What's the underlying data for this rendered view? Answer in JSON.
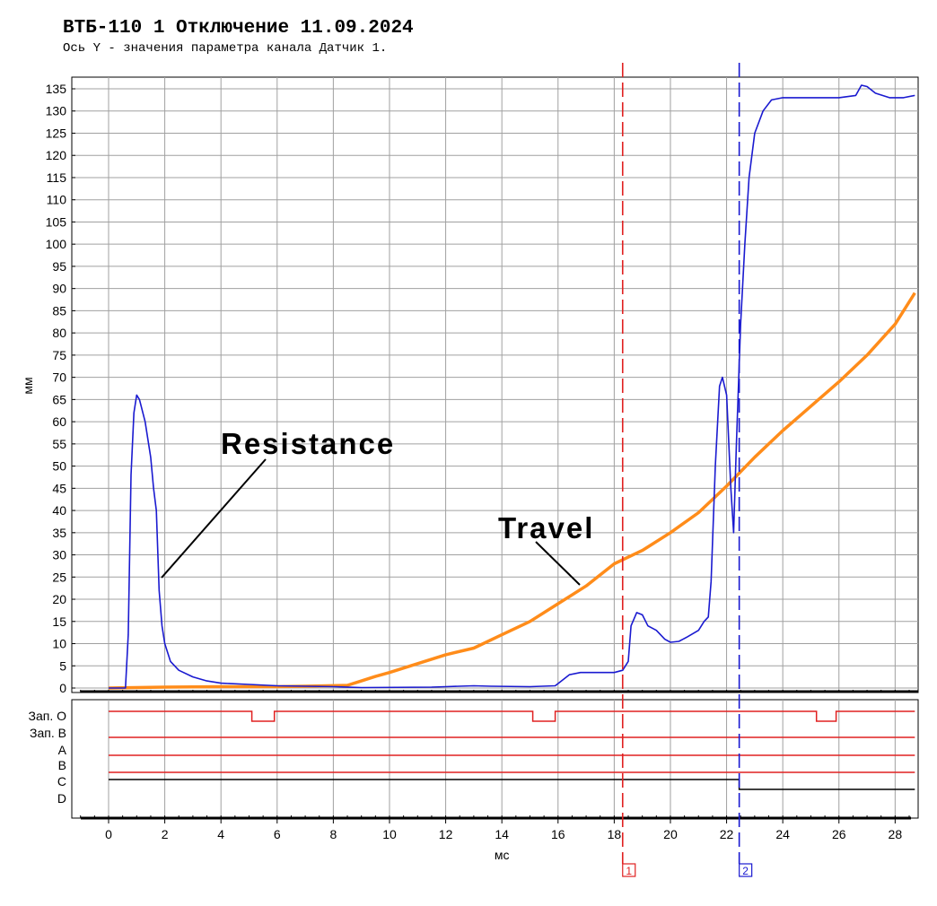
{
  "title": "ВТБ-110 1 Отключение 11.09.2024",
  "subtitle": "Ось Y - значения параметра канала Датчик 1.",
  "colors": {
    "resistance": "#1a1ad0",
    "travel": "#ff8c1a",
    "digital_red": "#e02020",
    "digital_black": "#000000",
    "marker1": "#e02020",
    "marker2": "#1a1ad0",
    "grid": "#a0a0a0"
  },
  "chart_data": {
    "type": "line",
    "xlabel": "мс",
    "ylabel": "мм",
    "xlim": [
      -1.1,
      28.7
    ],
    "ylim": [
      -0.5,
      137
    ],
    "x_ticks": [
      0,
      2,
      4,
      6,
      8,
      10,
      12,
      14,
      16,
      18,
      20,
      22,
      24,
      26,
      28
    ],
    "y_ticks": [
      0,
      5,
      10,
      15,
      20,
      25,
      30,
      35,
      40,
      45,
      50,
      55,
      60,
      65,
      70,
      75,
      80,
      85,
      90,
      95,
      100,
      105,
      110,
      115,
      120,
      125,
      130,
      135
    ],
    "grid": true,
    "series": [
      {
        "name": "Resistance",
        "points": [
          [
            0,
            0
          ],
          [
            0.6,
            0
          ],
          [
            0.7,
            12
          ],
          [
            0.8,
            48
          ],
          [
            0.9,
            62
          ],
          [
            1.0,
            66
          ],
          [
            1.1,
            65
          ],
          [
            1.3,
            60
          ],
          [
            1.5,
            52
          ],
          [
            1.6,
            45
          ],
          [
            1.7,
            40
          ],
          [
            1.8,
            22
          ],
          [
            1.9,
            14
          ],
          [
            2.0,
            10
          ],
          [
            2.2,
            6
          ],
          [
            2.5,
            4
          ],
          [
            3.0,
            2.5
          ],
          [
            3.5,
            1.6
          ],
          [
            4.0,
            1.1
          ],
          [
            5.0,
            0.8
          ],
          [
            6.0,
            0.5
          ],
          [
            7.0,
            0.4
          ],
          [
            8.0,
            0.3
          ],
          [
            9.0,
            0.1
          ],
          [
            11.5,
            0.2
          ],
          [
            12.0,
            0.3
          ],
          [
            13.0,
            0.5
          ],
          [
            13.6,
            0.4
          ],
          [
            15.0,
            0.3
          ],
          [
            15.9,
            0.5
          ],
          [
            16.1,
            1.5
          ],
          [
            16.4,
            3
          ],
          [
            16.8,
            3.5
          ],
          [
            17.5,
            3.5
          ],
          [
            18.0,
            3.5
          ],
          [
            18.3,
            4
          ],
          [
            18.5,
            6
          ],
          [
            18.6,
            14
          ],
          [
            18.8,
            17
          ],
          [
            19.0,
            16.5
          ],
          [
            19.2,
            14
          ],
          [
            19.5,
            13
          ],
          [
            19.8,
            11
          ],
          [
            20.0,
            10.3
          ],
          [
            20.3,
            10.5
          ],
          [
            20.6,
            11.5
          ],
          [
            21.0,
            13
          ],
          [
            21.2,
            15
          ],
          [
            21.35,
            16
          ],
          [
            21.45,
            24
          ],
          [
            21.6,
            50
          ],
          [
            21.75,
            68
          ],
          [
            21.85,
            70
          ],
          [
            22.0,
            66
          ],
          [
            22.15,
            45
          ],
          [
            22.25,
            35
          ],
          [
            22.35,
            55
          ],
          [
            22.5,
            82
          ],
          [
            22.65,
            100
          ],
          [
            22.8,
            115
          ],
          [
            23.0,
            125
          ],
          [
            23.3,
            130
          ],
          [
            23.6,
            132.5
          ],
          [
            24.0,
            133
          ],
          [
            25.0,
            133
          ],
          [
            26.0,
            133
          ],
          [
            26.6,
            133.5
          ],
          [
            26.8,
            135.8
          ],
          [
            27.0,
            135.5
          ],
          [
            27.3,
            134
          ],
          [
            27.8,
            133
          ],
          [
            28.3,
            133
          ],
          [
            28.7,
            133.5
          ]
        ]
      },
      {
        "name": "Travel",
        "points": [
          [
            0,
            0
          ],
          [
            2,
            0.2
          ],
          [
            4,
            0.3
          ],
          [
            6,
            0.3
          ],
          [
            7,
            0.4
          ],
          [
            8.5,
            0.6
          ],
          [
            9,
            1.6
          ],
          [
            9.5,
            2.6
          ],
          [
            10,
            3.5
          ],
          [
            11,
            5.5
          ],
          [
            12,
            7.5
          ],
          [
            13,
            9
          ],
          [
            14,
            12
          ],
          [
            15,
            15
          ],
          [
            16,
            19
          ],
          [
            17,
            23
          ],
          [
            18,
            28
          ],
          [
            19,
            31
          ],
          [
            20,
            35
          ],
          [
            21,
            39.5
          ],
          [
            22,
            45.5
          ],
          [
            23,
            52
          ],
          [
            24,
            58
          ],
          [
            25,
            63.5
          ],
          [
            26,
            69
          ],
          [
            27,
            75
          ],
          [
            28,
            82
          ],
          [
            28.7,
            89
          ]
        ]
      }
    ],
    "annotations": [
      {
        "text": "Resistance",
        "target": "Resistance"
      },
      {
        "text": "Travel",
        "target": "Travel"
      }
    ],
    "markers": [
      {
        "label": "1",
        "x": 18.3,
        "color": "red"
      },
      {
        "label": "2",
        "x": 22.45,
        "color": "blue"
      }
    ],
    "digital_channels": [
      {
        "name": "Зап. О",
        "color": "red",
        "segments": [
          [
            0,
            5.1,
            1
          ],
          [
            5.1,
            5.9,
            0
          ],
          [
            5.9,
            15.1,
            1
          ],
          [
            15.1,
            15.9,
            0
          ],
          [
            15.9,
            25.2,
            1
          ],
          [
            25.2,
            25.9,
            0
          ],
          [
            25.9,
            28.7,
            1
          ]
        ]
      },
      {
        "name": "Зап. В",
        "color": "red",
        "segments": [
          [
            0,
            28.7,
            1
          ]
        ]
      },
      {
        "name": "A",
        "color": "red",
        "segments": [
          [
            0,
            28.7,
            1
          ]
        ]
      },
      {
        "name": "B",
        "color": "red",
        "segments": [
          [
            0,
            28.7,
            1
          ]
        ]
      },
      {
        "name": "C",
        "color": "black",
        "segments": [
          [
            0,
            22.45,
            1
          ],
          [
            22.45,
            28.7,
            0
          ]
        ]
      },
      {
        "name": "D",
        "color": "black",
        "segments": []
      }
    ]
  }
}
